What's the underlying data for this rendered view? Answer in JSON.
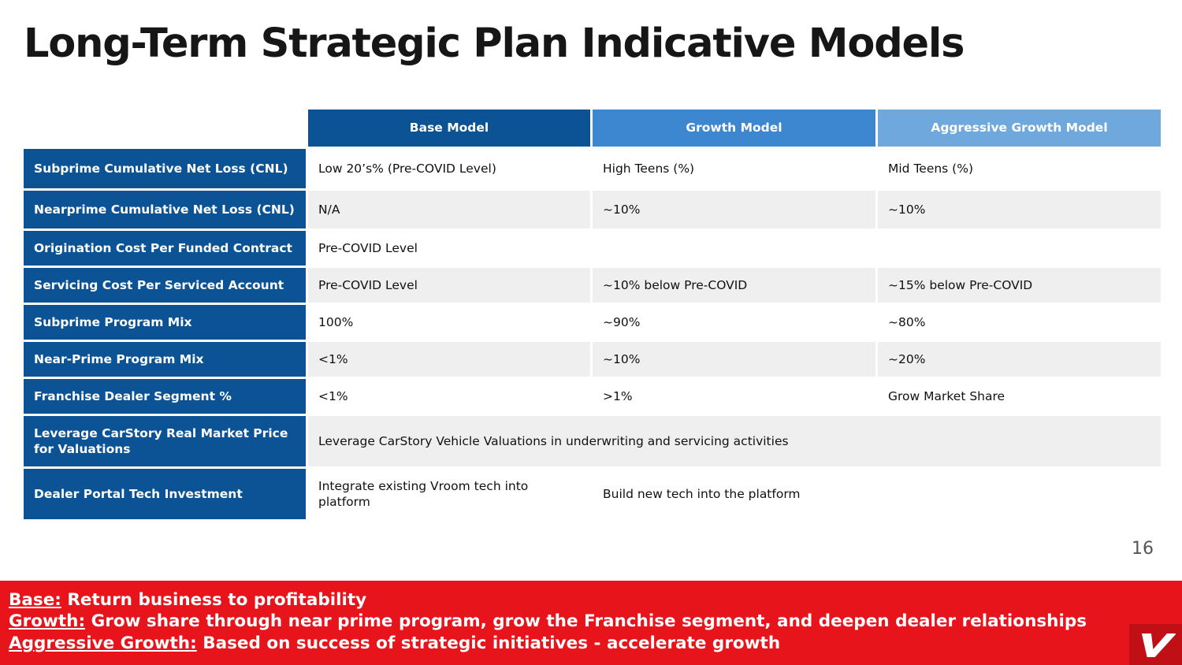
{
  "title": "Long-Term Strategic Plan Indicative Models",
  "columns": [
    "Base Model",
    "Growth Model",
    "Aggressive Growth Model"
  ],
  "rows": [
    {
      "label": "Subprime Cumulative Net Loss (CNL)",
      "base": "Low 20’s% (Pre-COVID Level)",
      "growth": "High Teens (%)",
      "aggressive": "Mid Teens (%)"
    },
    {
      "label": "Nearprime Cumulative Net Loss (CNL)",
      "base": "N/A",
      "growth": "~10%",
      "aggressive": "~10%"
    },
    {
      "label": "Origination Cost Per Funded Contract",
      "merged": "Pre-COVID Level"
    },
    {
      "label": "Servicing Cost Per Serviced Account",
      "base": "Pre-COVID Level",
      "growth": "~10% below Pre-COVID",
      "aggressive": "~15% below Pre-COVID"
    },
    {
      "label": "Subprime Program Mix",
      "base": "100%",
      "growth": "~90%",
      "aggressive": "~80%"
    },
    {
      "label": "Near-Prime Program  Mix",
      "base": "<1%",
      "growth": "~10%",
      "aggressive": "~20%"
    },
    {
      "label": "Franchise Dealer Segment %",
      "base": "<1%",
      "growth": ">1%",
      "aggressive": "Grow Market Share"
    },
    {
      "label": "Leverage CarStory Real Market Price for Valuations",
      "merged": "Leverage CarStory Vehicle Valuations  in underwriting and servicing activities"
    },
    {
      "label": "Dealer Portal Tech Investment",
      "base": "Integrate existing Vroom tech into platform",
      "growth_aggressive": "Build new tech into the platform"
    }
  ],
  "page_number": "16",
  "banner": {
    "base_key": "Base:",
    "base_text": " Return business to profitability",
    "growth_key": "Growth:",
    "growth_text": " Grow share through near prime program, grow the Franchise segment, and deepen dealer relationships",
    "aggressive_key": "Aggressive Growth:",
    "aggressive_text": "  Based on success of strategic initiatives - accelerate growth"
  },
  "logo": {
    "icon": "vroom-v-logo",
    "letter": "V"
  },
  "colors": {
    "header_base": "#0b5394",
    "header_growth": "#3c87d0",
    "header_aggressive": "#6fa8dc",
    "banner": "#e8141b"
  }
}
